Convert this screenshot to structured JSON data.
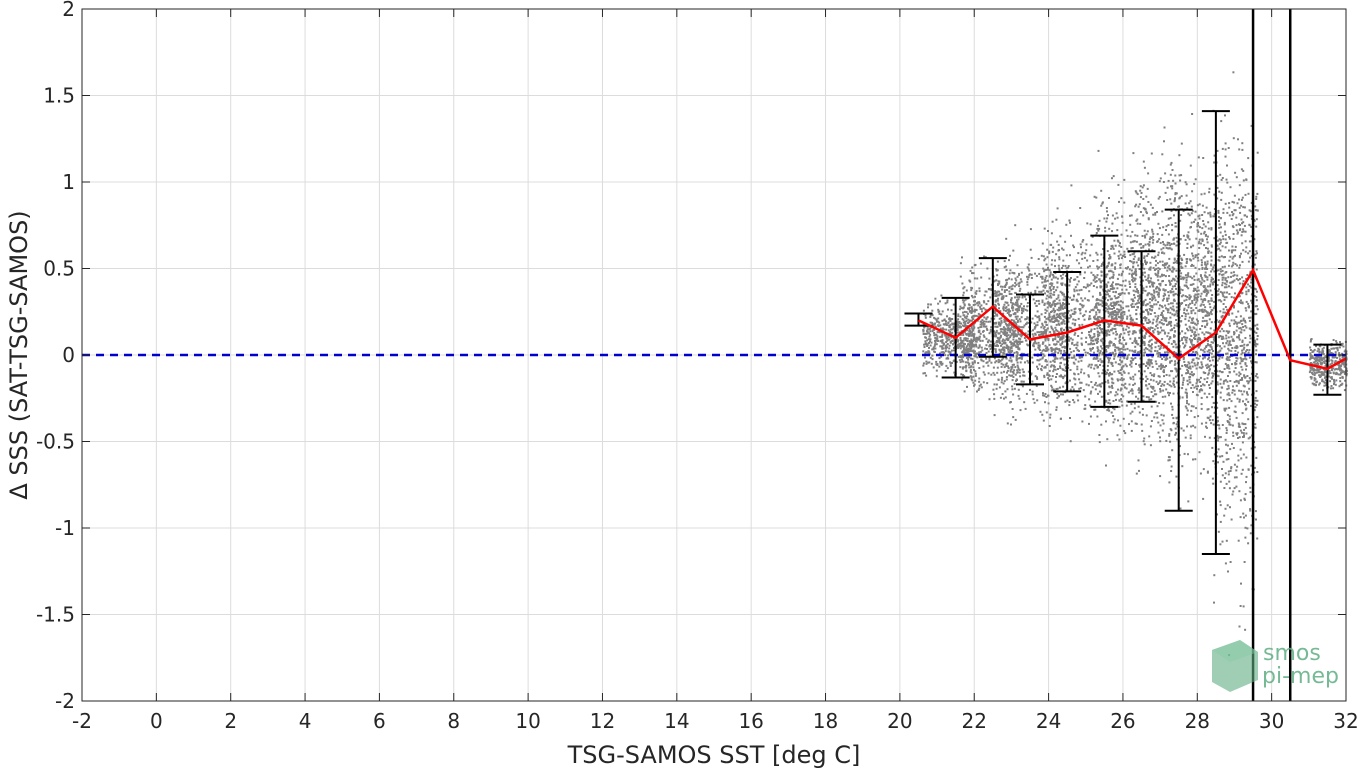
{
  "chart_data": {
    "type": "scatter",
    "title": "",
    "xlabel": "TSG-SAMOS SST [deg C]",
    "ylabel": "Δ SSS (SAT-TSG-SAMOS)",
    "xlim": [
      -2,
      32
    ],
    "ylim": [
      -2,
      2
    ],
    "grid": true,
    "xticks": [
      -2,
      0,
      2,
      4,
      6,
      8,
      10,
      12,
      14,
      16,
      18,
      20,
      22,
      24,
      26,
      28,
      30,
      32
    ],
    "xtick_labels": [
      "-2",
      "0",
      "2",
      "4",
      "6",
      "8",
      "10",
      "12",
      "14",
      "16",
      "18",
      "20",
      "22",
      "24",
      "26",
      "28",
      "30",
      "32"
    ],
    "yticks": [
      2,
      1.5,
      1,
      0.5,
      0,
      -0.5,
      -1,
      -1.5,
      -2
    ],
    "ytick_labels": [
      "2",
      "1.5",
      "1",
      "0.5",
      "0",
      "-0.5",
      "-1",
      "-1.5",
      "-2"
    ],
    "scatter_color": "#808080",
    "scatter_clusters": [
      {
        "x": [
          20.6,
          22.0
        ],
        "y_center": 0.1,
        "y_spread": 0.25
      },
      {
        "x": [
          21.6,
          23.2
        ],
        "y_center": 0.15,
        "y_spread": 0.45
      },
      {
        "x": [
          22.5,
          24.5
        ],
        "y_center": 0.15,
        "y_spread": 0.55
      },
      {
        "x": [
          23.8,
          26.0
        ],
        "y_center": 0.2,
        "y_spread": 0.7
      },
      {
        "x": [
          25.2,
          27.2
        ],
        "y_center": 0.25,
        "y_spread": 0.85
      },
      {
        "x": [
          26.2,
          28.4
        ],
        "y_center": 0.25,
        "y_spread": 1.0
      },
      {
        "x": [
          27.2,
          29.6
        ],
        "y_center": 0.25,
        "y_spread": 1.15
      },
      {
        "x": [
          28.4,
          29.6
        ],
        "y_center": 0.0,
        "y_spread": 1.6
      },
      {
        "x": [
          31.0,
          32.0
        ],
        "y_center": -0.05,
        "y_spread": 0.18
      }
    ],
    "series": [
      {
        "type": "line",
        "color": "#ff0000",
        "x": [
          20.5,
          21.5,
          22.5,
          23.5,
          24.5,
          25.5,
          26.5,
          27.5,
          28.5,
          29.5,
          30.5,
          31.5,
          32.0
        ],
        "y": [
          0.2,
          0.1,
          0.28,
          0.09,
          0.13,
          0.2,
          0.17,
          -0.02,
          0.13,
          0.49,
          -0.03,
          -0.08,
          -0.02
        ]
      }
    ],
    "error_bars": {
      "color": "#000000",
      "x": [
        20.5,
        21.5,
        22.5,
        23.5,
        24.5,
        25.5,
        26.5,
        27.5,
        28.5,
        31.5
      ],
      "lower": [
        0.17,
        -0.13,
        -0.01,
        -0.17,
        -0.21,
        -0.3,
        -0.27,
        -0.9,
        -1.15,
        -0.23
      ],
      "upper": [
        0.24,
        0.33,
        0.56,
        0.35,
        0.48,
        0.69,
        0.6,
        0.84,
        1.41,
        0.06
      ]
    },
    "reference_line": {
      "y": 0,
      "style": "dashed",
      "color": "#0000cc"
    },
    "vertical_lines": {
      "x": [
        29.5,
        30.5
      ],
      "color": "#000000"
    }
  },
  "logo": {
    "line1": "smos",
    "line2": "pi-mep",
    "color": "#5fae83"
  }
}
